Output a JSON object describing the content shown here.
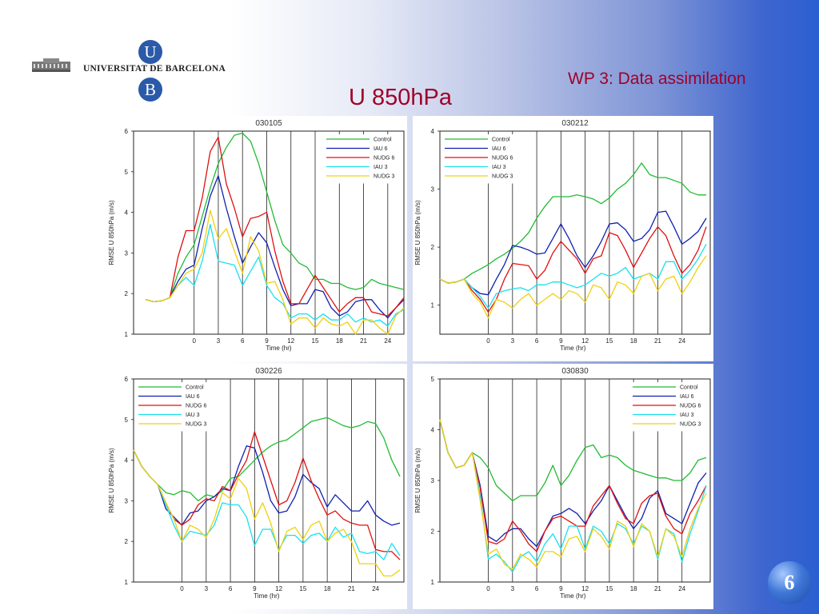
{
  "header": {
    "university": "UNIVERSITAT DE BARCELONA",
    "logo_top_letter": "U",
    "logo_bottom_letter": "B",
    "workpackage": "WP  3: Data assimilation",
    "title": "U 850hPa",
    "page_number": "6"
  },
  "colors": {
    "Control": "#22bb33",
    "IAU 6": "#1020b0",
    "NUDG 6": "#e01010",
    "IAU 3": "#18e0f0",
    "NUDG 3": "#f0d010"
  },
  "chart_data": [
    {
      "type": "line",
      "title": "030105",
      "xlabel": "Time (hr)",
      "ylabel": "RMSE  U 850hPa (m/s)",
      "xlim": [
        -7.5,
        26
      ],
      "ylim": [
        1,
        6
      ],
      "xticks": [
        0,
        3,
        6,
        9,
        12,
        15,
        18,
        21,
        24
      ],
      "yticks": [
        1,
        2,
        3,
        4,
        5,
        6
      ],
      "grid": "vertical lines",
      "legend": "top-right",
      "x": [
        -6,
        -5,
        -4,
        -3,
        -2,
        -1,
        0,
        1,
        2,
        3,
        4,
        5,
        6,
        7,
        8,
        9,
        10,
        11,
        12,
        13,
        14,
        15,
        16,
        17,
        18,
        19,
        20,
        21,
        22,
        23,
        24,
        25,
        26
      ],
      "series": [
        {
          "name": "Control",
          "values": [
            1.85,
            1.8,
            1.82,
            1.9,
            2.5,
            2.9,
            3.2,
            3.9,
            4.6,
            5.2,
            5.6,
            5.9,
            5.95,
            5.75,
            5.2,
            4.5,
            3.8,
            3.2,
            3.0,
            2.75,
            2.65,
            2.35,
            2.35,
            2.25,
            2.25,
            2.15,
            2.1,
            2.15,
            2.35,
            2.25,
            2.2,
            2.15,
            2.1
          ]
        },
        {
          "name": "IAU 6",
          "values": [
            1.85,
            1.8,
            1.82,
            1.9,
            2.3,
            2.6,
            2.7,
            3.6,
            4.4,
            4.9,
            4.1,
            3.4,
            2.75,
            3.15,
            3.5,
            3.25,
            2.65,
            2.1,
            1.7,
            1.75,
            1.75,
            2.1,
            2.05,
            1.65,
            1.45,
            1.55,
            1.8,
            1.85,
            1.85,
            1.6,
            1.4,
            1.65,
            1.85
          ]
        },
        {
          "name": "NUDG 6",
          "values": [
            1.85,
            1.8,
            1.82,
            1.9,
            2.9,
            3.55,
            3.55,
            4.35,
            5.5,
            5.85,
            4.7,
            4.1,
            3.4,
            3.85,
            3.9,
            4.0,
            3.05,
            2.3,
            1.75,
            1.75,
            2.1,
            2.45,
            2.15,
            1.85,
            1.55,
            1.75,
            1.9,
            1.9,
            1.55,
            1.5,
            1.45,
            1.65,
            1.9
          ]
        },
        {
          "name": "IAU 3",
          "values": [
            1.85,
            1.8,
            1.82,
            1.9,
            2.2,
            2.4,
            2.2,
            2.8,
            3.7,
            2.8,
            2.75,
            2.7,
            2.2,
            2.55,
            2.9,
            2.2,
            1.9,
            1.75,
            1.4,
            1.5,
            1.5,
            1.35,
            1.5,
            1.35,
            1.35,
            1.5,
            1.3,
            1.4,
            1.3,
            1.35,
            1.2,
            1.5,
            1.6
          ]
        },
        {
          "name": "NUDG 3",
          "values": [
            1.85,
            1.8,
            1.82,
            1.9,
            2.2,
            2.5,
            2.6,
            3.0,
            4.05,
            3.35,
            3.6,
            3.05,
            2.5,
            3.4,
            3.05,
            2.25,
            2.3,
            1.85,
            1.25,
            1.4,
            1.4,
            1.15,
            1.4,
            1.25,
            1.2,
            1.3,
            1.0,
            1.35,
            1.35,
            1.15,
            1.0,
            1.45,
            1.65
          ]
        }
      ]
    },
    {
      "type": "line",
      "title": "030212",
      "xlabel": "Time (hr)",
      "ylabel": "RMSE  U 850hPa (m/s)",
      "xlim": [
        -6,
        27.5
      ],
      "ylim": [
        0.5,
        4
      ],
      "xticks": [
        0,
        3,
        6,
        9,
        12,
        15,
        18,
        21,
        24
      ],
      "yticks": [
        1,
        2,
        3,
        4
      ],
      "grid": "vertical lines",
      "legend": "top-left",
      "x": [
        -6,
        -5,
        -4,
        -3,
        -2,
        -1,
        0,
        1,
        2,
        3,
        4,
        5,
        6,
        7,
        8,
        9,
        10,
        11,
        12,
        13,
        14,
        15,
        16,
        17,
        18,
        19,
        20,
        21,
        22,
        23,
        24,
        25,
        26,
        27
      ],
      "series": [
        {
          "name": "Control",
          "values": [
            1.45,
            1.38,
            1.4,
            1.45,
            1.55,
            1.62,
            1.7,
            1.8,
            1.88,
            1.98,
            2.1,
            2.25,
            2.5,
            2.7,
            2.87,
            2.87,
            2.87,
            2.9,
            2.87,
            2.83,
            2.75,
            2.85,
            3.0,
            3.1,
            3.25,
            3.45,
            3.25,
            3.2,
            3.2,
            3.15,
            3.1,
            2.95,
            2.9,
            2.9
          ]
        },
        {
          "name": "IAU 6",
          "values": [
            1.45,
            1.38,
            1.4,
            1.45,
            1.3,
            1.2,
            1.18,
            1.45,
            1.7,
            2.03,
            2.0,
            1.95,
            1.88,
            1.9,
            2.15,
            2.4,
            2.15,
            1.85,
            1.65,
            1.85,
            2.1,
            2.4,
            2.42,
            2.3,
            2.1,
            2.15,
            2.3,
            2.6,
            2.62,
            2.35,
            2.05,
            2.15,
            2.27,
            2.5
          ]
        },
        {
          "name": "NUDG 6",
          "values": [
            1.45,
            1.38,
            1.4,
            1.45,
            1.25,
            1.1,
            0.88,
            1.1,
            1.45,
            1.72,
            1.7,
            1.68,
            1.45,
            1.6,
            1.9,
            2.1,
            1.95,
            1.8,
            1.55,
            1.8,
            1.85,
            2.25,
            2.2,
            1.95,
            1.65,
            1.9,
            2.15,
            2.35,
            2.2,
            1.85,
            1.55,
            1.7,
            1.95,
            2.35
          ]
        },
        {
          "name": "IAU 3",
          "values": [
            1.45,
            1.38,
            1.4,
            1.45,
            1.3,
            1.15,
            0.95,
            1.2,
            1.25,
            1.28,
            1.3,
            1.25,
            1.35,
            1.35,
            1.4,
            1.4,
            1.35,
            1.3,
            1.35,
            1.45,
            1.55,
            1.5,
            1.55,
            1.65,
            1.45,
            1.5,
            1.55,
            1.45,
            1.75,
            1.75,
            1.45,
            1.6,
            1.8,
            2.05
          ]
        },
        {
          "name": "NUDG 3",
          "values": [
            1.45,
            1.38,
            1.4,
            1.45,
            1.2,
            1.05,
            0.78,
            1.1,
            1.05,
            0.95,
            1.1,
            1.2,
            1.0,
            1.1,
            1.2,
            1.1,
            1.25,
            1.2,
            1.05,
            1.35,
            1.3,
            1.1,
            1.4,
            1.35,
            1.2,
            1.5,
            1.55,
            1.25,
            1.45,
            1.5,
            1.2,
            1.4,
            1.65,
            1.85
          ]
        }
      ]
    },
    {
      "type": "line",
      "title": "030226",
      "xlabel": "Time (hr)",
      "ylabel": "RMSE  U 850hPa (m/s)",
      "xlim": [
        -6,
        27.5
      ],
      "ylim": [
        1,
        6
      ],
      "xticks": [
        0,
        3,
        6,
        9,
        12,
        15,
        18,
        21,
        24
      ],
      "yticks": [
        1,
        2,
        3,
        4,
        5,
        6
      ],
      "grid": "vertical lines",
      "legend": "top-left",
      "x": [
        -6,
        -5,
        -4,
        -3,
        -2,
        -1,
        0,
        1,
        2,
        3,
        4,
        5,
        6,
        7,
        8,
        9,
        10,
        11,
        12,
        13,
        14,
        15,
        16,
        17,
        18,
        19,
        20,
        21,
        22,
        23,
        24,
        25,
        26,
        27
      ],
      "series": [
        {
          "name": "Control",
          "values": [
            4.25,
            3.85,
            3.6,
            3.4,
            3.2,
            3.15,
            3.25,
            3.2,
            3.0,
            3.15,
            3.1,
            3.25,
            3.55,
            3.6,
            3.8,
            4.0,
            4.2,
            4.35,
            4.45,
            4.5,
            4.65,
            4.8,
            4.95,
            5.0,
            5.05,
            4.95,
            4.85,
            4.8,
            4.85,
            4.95,
            4.9,
            4.55,
            4.0,
            3.6
          ]
        },
        {
          "name": "IAU 6",
          "values": [
            4.25,
            3.85,
            3.6,
            3.4,
            2.8,
            2.6,
            2.4,
            2.7,
            2.75,
            3.0,
            3.1,
            3.3,
            3.25,
            3.85,
            4.35,
            4.3,
            3.7,
            3.0,
            2.7,
            2.75,
            3.1,
            3.65,
            3.45,
            3.3,
            2.85,
            3.15,
            2.95,
            2.75,
            2.75,
            3.0,
            2.65,
            2.5,
            2.4,
            2.45
          ]
        },
        {
          "name": "NUDG 6",
          "values": [
            4.25,
            3.85,
            3.6,
            3.4,
            2.95,
            2.55,
            2.4,
            2.55,
            2.9,
            3.05,
            3.0,
            3.35,
            3.25,
            3.65,
            4.0,
            4.7,
            4.1,
            3.5,
            2.9,
            3.0,
            3.45,
            4.05,
            3.5,
            3.05,
            2.65,
            2.75,
            2.55,
            2.45,
            2.4,
            2.4,
            1.8,
            1.75,
            1.75,
            1.55
          ]
        },
        {
          "name": "IAU 3",
          "values": [
            4.25,
            3.85,
            3.6,
            3.4,
            2.9,
            2.4,
            2.0,
            2.25,
            2.2,
            2.15,
            2.4,
            2.95,
            2.9,
            2.9,
            2.6,
            1.9,
            2.3,
            2.3,
            1.8,
            2.15,
            2.15,
            1.95,
            2.15,
            2.2,
            2.0,
            2.35,
            2.1,
            2.2,
            1.75,
            1.7,
            1.75,
            1.55,
            1.95,
            1.65
          ]
        },
        {
          "name": "NUDG 3",
          "values": [
            4.25,
            3.85,
            3.6,
            3.4,
            2.95,
            2.55,
            2.0,
            2.4,
            2.3,
            2.1,
            2.55,
            3.2,
            3.05,
            3.55,
            3.3,
            2.55,
            2.95,
            2.45,
            1.75,
            2.25,
            2.35,
            2.05,
            2.4,
            2.5,
            2.0,
            2.2,
            2.3,
            2.0,
            1.45,
            1.45,
            1.45,
            1.15,
            1.15,
            1.3
          ]
        }
      ]
    },
    {
      "type": "line",
      "title": "030830",
      "xlabel": "Time (hr)",
      "ylabel": "RMSE  U 850hPa (m/s)",
      "xlim": [
        -6,
        27.5
      ],
      "ylim": [
        1,
        5
      ],
      "xticks": [
        0,
        3,
        6,
        9,
        12,
        15,
        18,
        21,
        24
      ],
      "yticks": [
        1,
        2,
        3,
        4,
        5
      ],
      "grid": "vertical lines",
      "legend": "top-right",
      "x": [
        -6,
        -5,
        -4,
        -3,
        -2,
        -1,
        0,
        1,
        2,
        3,
        4,
        5,
        6,
        7,
        8,
        9,
        10,
        11,
        12,
        13,
        14,
        15,
        16,
        17,
        18,
        19,
        20,
        21,
        22,
        23,
        24,
        25,
        26,
        27
      ],
      "series": [
        {
          "name": "Control",
          "values": [
            4.2,
            3.55,
            3.25,
            3.3,
            3.55,
            3.45,
            3.25,
            2.9,
            2.75,
            2.6,
            2.7,
            2.7,
            2.7,
            2.95,
            3.3,
            2.9,
            3.1,
            3.4,
            3.65,
            3.7,
            3.45,
            3.5,
            3.45,
            3.3,
            3.2,
            3.15,
            3.1,
            3.05,
            3.05,
            3.0,
            3.0,
            3.15,
            3.4,
            3.45
          ]
        },
        {
          "name": "IAU 6",
          "values": [
            4.2,
            3.55,
            3.25,
            3.3,
            3.55,
            2.9,
            1.9,
            1.8,
            1.95,
            2.05,
            2.05,
            1.85,
            1.7,
            2.0,
            2.3,
            2.35,
            2.45,
            2.35,
            2.15,
            2.4,
            2.6,
            2.9,
            2.6,
            2.3,
            2.05,
            2.25,
            2.65,
            2.8,
            2.35,
            2.25,
            2.15,
            2.55,
            2.95,
            3.15
          ]
        },
        {
          "name": "NUDG 6",
          "values": [
            4.2,
            3.55,
            3.25,
            3.3,
            3.55,
            2.85,
            1.8,
            1.75,
            1.85,
            2.2,
            2.0,
            1.75,
            1.6,
            2.0,
            2.25,
            2.3,
            2.2,
            2.1,
            2.1,
            2.5,
            2.7,
            2.9,
            2.55,
            2.25,
            2.15,
            2.55,
            2.7,
            2.75,
            2.3,
            2.05,
            1.95,
            2.35,
            2.6,
            2.9
          ]
        },
        {
          "name": "IAU 3",
          "values": [
            4.2,
            3.55,
            3.25,
            3.3,
            3.55,
            2.7,
            1.45,
            1.55,
            1.4,
            1.2,
            1.5,
            1.6,
            1.4,
            1.75,
            1.95,
            1.65,
            2.1,
            2.1,
            1.65,
            2.1,
            2.0,
            1.75,
            2.15,
            2.05,
            1.75,
            2.1,
            2.0,
            1.45,
            2.05,
            1.95,
            1.4,
            1.95,
            2.4,
            2.9
          ]
        },
        {
          "name": "NUDG 3",
          "values": [
            4.2,
            3.55,
            3.25,
            3.3,
            3.55,
            2.6,
            1.55,
            1.65,
            1.35,
            1.25,
            1.55,
            1.45,
            1.3,
            1.6,
            1.6,
            1.5,
            1.85,
            1.9,
            1.6,
            2.05,
            1.9,
            1.65,
            2.2,
            2.1,
            1.7,
            2.15,
            2.0,
            1.5,
            2.05,
            1.9,
            1.5,
            2.05,
            2.45,
            2.75
          ]
        }
      ]
    }
  ]
}
